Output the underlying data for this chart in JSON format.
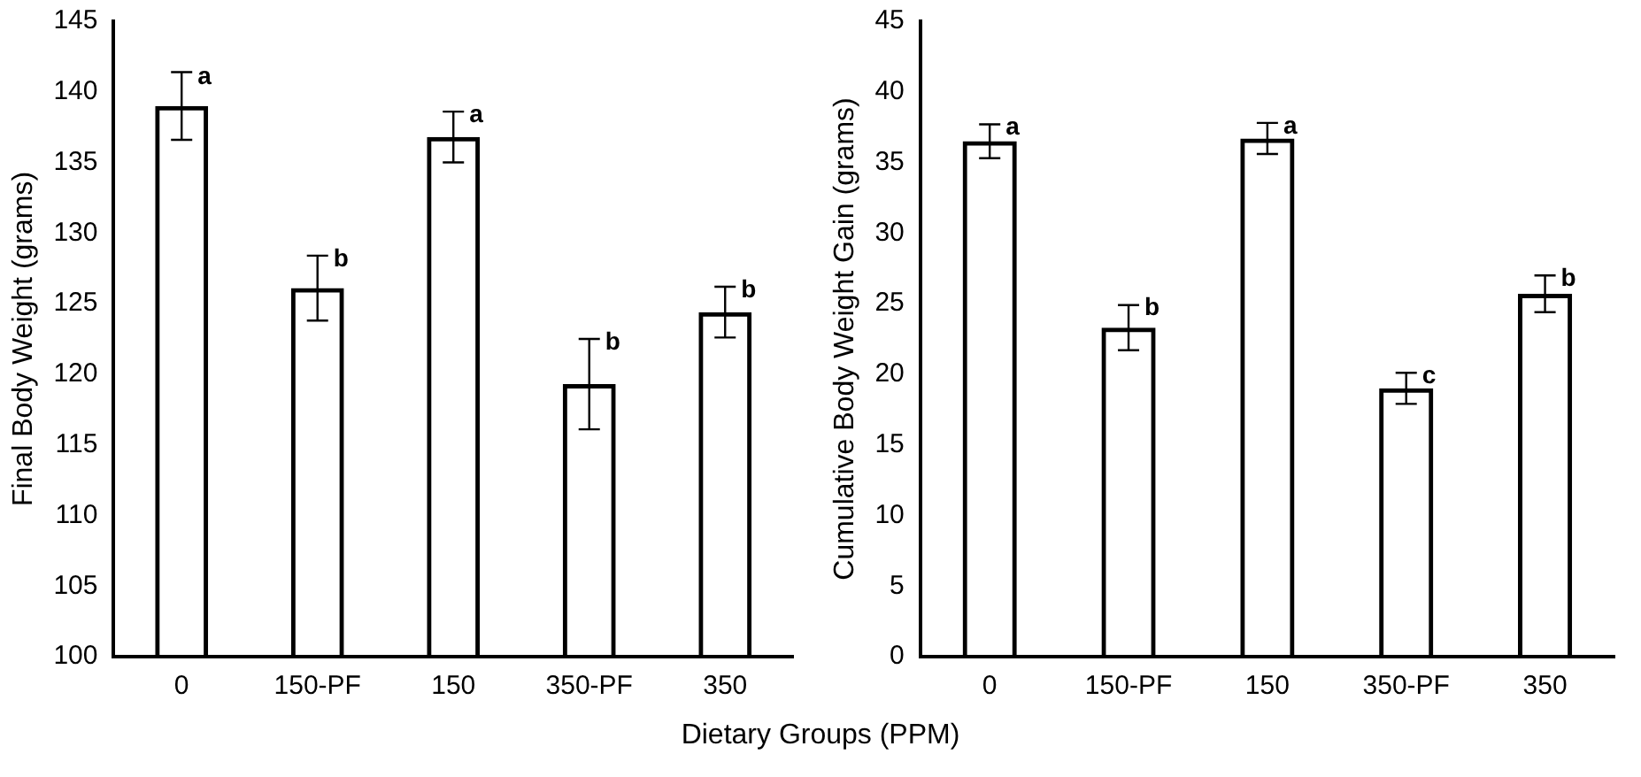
{
  "chart_data": [
    {
      "type": "bar",
      "ylabel": "Final Body Weight (grams)",
      "xlabel": "Dietary Groups (PPM)",
      "categories": [
        "0",
        "150-PF",
        "150",
        "350-PF",
        "350"
      ],
      "values": [
        139,
        126.1,
        136.8,
        119.3,
        124.4
      ],
      "errors": [
        2.4,
        2.3,
        1.8,
        3.2,
        1.8
      ],
      "color": "#000000",
      "ylim": [
        100,
        145
      ],
      "yticks": [
        100,
        105,
        110,
        115,
        120,
        125,
        130,
        135,
        140,
        145
      ],
      "grid": false,
      "legend": false,
      "annotations": [
        {
          "text": "a",
          "x": "0",
          "y": 141.3
        },
        {
          "text": "b",
          "x": "150-PF",
          "y": 128.4
        },
        {
          "text": "a",
          "x": "150",
          "y": 138.6
        },
        {
          "text": "b",
          "x": "350-PF",
          "y": 122.5
        },
        {
          "text": "b",
          "x": "350",
          "y": 126.2
        }
      ]
    },
    {
      "type": "bar",
      "ylabel": "Cumulative Body Weight Gain (grams)",
      "categories": [
        "0",
        "150-PF",
        "150",
        "350-PF",
        "350"
      ],
      "values": [
        36.5,
        23.3,
        36.7,
        19.0,
        25.7
      ],
      "errors": [
        1.2,
        1.6,
        1.1,
        1.1,
        1.3
      ],
      "color": "#000000",
      "ylim": [
        0,
        45
      ],
      "yticks": [
        0,
        5,
        10,
        15,
        20,
        25,
        30,
        35,
        40,
        45
      ],
      "grid": false,
      "legend": false,
      "annotations": [
        {
          "text": "a",
          "x": "0",
          "y": 37.7
        },
        {
          "text": "b",
          "x": "150-PF",
          "y": 24.9
        },
        {
          "text": "a",
          "x": "150",
          "y": 37.8
        },
        {
          "text": "c",
          "x": "350-PF",
          "y": 20.1
        },
        {
          "text": "b",
          "x": "350",
          "y": 27.0
        }
      ]
    }
  ]
}
